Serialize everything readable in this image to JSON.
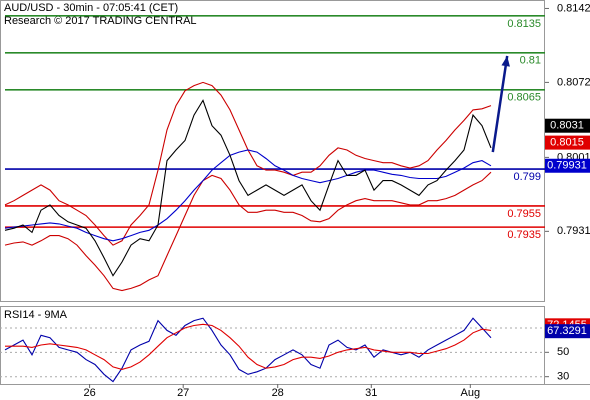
{
  "chart_data": [
    {
      "type": "line",
      "title": "AUD/USD - 30min - 07:05:41 (CET)",
      "subtitle": "Research © 2017 TRADING CENTRAL",
      "x": [
        0,
        1,
        2,
        3,
        4,
        5,
        6,
        7,
        8,
        9,
        10,
        11,
        12,
        13,
        14,
        15,
        16,
        17,
        18,
        19,
        20,
        21,
        22,
        23,
        24,
        25,
        26,
        27,
        28,
        29,
        30,
        31,
        32,
        33,
        34,
        35,
        36,
        37,
        38,
        39,
        40,
        41,
        42,
        43,
        44,
        45,
        46,
        47,
        48,
        49,
        50,
        51,
        52,
        53,
        54
      ],
      "xlim": [
        0,
        60
      ],
      "ylim": [
        0.7866,
        0.815
      ],
      "yticks": [
        0.8142,
        0.8072,
        0.8001,
        0.7931
      ],
      "series": [
        {
          "color": "#cc0000",
          "values": [
            0.7956,
            0.796,
            0.7965,
            0.797,
            0.7975,
            0.797,
            0.796,
            0.7956,
            0.7951,
            0.7946,
            0.7937,
            0.7927,
            0.7918,
            0.7922,
            0.7937,
            0.7946,
            0.7956,
            0.7989,
            0.8027,
            0.805,
            0.8064,
            0.8069,
            0.8072,
            0.8069,
            0.806,
            0.8046,
            0.8027,
            0.8008,
            0.7993,
            0.7989,
            0.7989,
            0.7987,
            0.7984,
            0.7987,
            0.7987,
            0.7993,
            0.8003,
            0.801,
            0.8008,
            0.8003,
            0.8,
            0.7998,
            0.7996,
            0.7996,
            0.7993,
            0.7991,
            0.7993,
            0.7998,
            0.8008,
            0.8017,
            0.8027,
            0.8036,
            0.8046,
            0.8047,
            0.805
          ]
        },
        {
          "color": "#cc0000",
          "values": [
            0.7918,
            0.792,
            0.7921,
            0.7918,
            0.7922,
            0.7927,
            0.7927,
            0.7924,
            0.7918,
            0.7908,
            0.7899,
            0.7889,
            0.7877,
            0.7875,
            0.7877,
            0.788,
            0.7885,
            0.7889,
            0.7908,
            0.7927,
            0.7946,
            0.7965,
            0.7979,
            0.7984,
            0.7981,
            0.797,
            0.7956,
            0.7949,
            0.7949,
            0.7951,
            0.7951,
            0.7949,
            0.7949,
            0.7946,
            0.7941,
            0.794,
            0.7943,
            0.7951,
            0.7956,
            0.796,
            0.7962,
            0.796,
            0.796,
            0.796,
            0.7958,
            0.7956,
            0.7956,
            0.796,
            0.796,
            0.7962,
            0.7965,
            0.797,
            0.7975,
            0.7979,
            0.7987
          ]
        },
        {
          "color": "#0000cc",
          "values": [
            0.7934,
            0.7935,
            0.7936,
            0.7937,
            0.7938,
            0.7939,
            0.7938,
            0.7936,
            0.7934,
            0.793,
            0.7927,
            0.7924,
            0.7922,
            0.7924,
            0.7927,
            0.793,
            0.7932,
            0.7937,
            0.7943,
            0.7951,
            0.796,
            0.797,
            0.7979,
            0.7989,
            0.7996,
            0.8003,
            0.8006,
            0.8008,
            0.8006,
            0.8,
            0.7993,
            0.7989,
            0.7984,
            0.7981,
            0.7979,
            0.7977,
            0.7979,
            0.7981,
            0.7984,
            0.7987,
            0.7989,
            0.7989,
            0.7987,
            0.7985,
            0.7984,
            0.7982,
            0.7981,
            0.7981,
            0.7981,
            0.7983,
            0.7987,
            0.7991,
            0.7996,
            0.7998,
            0.7993
          ]
        },
        {
          "color": "#000000",
          "values": [
            0.7932,
            0.7934,
            0.7937,
            0.793,
            0.7951,
            0.7956,
            0.7946,
            0.794,
            0.7937,
            0.7934,
            0.7922,
            0.7906,
            0.7889,
            0.7902,
            0.7918,
            0.7924,
            0.7922,
            0.7937,
            0.7998,
            0.8008,
            0.8017,
            0.8041,
            0.8055,
            0.8031,
            0.8022,
            0.8003,
            0.7979,
            0.7965,
            0.797,
            0.7975,
            0.797,
            0.7965,
            0.797,
            0.7975,
            0.796,
            0.7951,
            0.7975,
            0.7998,
            0.7984,
            0.7984,
            0.7989,
            0.797,
            0.7979,
            0.7979,
            0.7975,
            0.797,
            0.7965,
            0.7975,
            0.7979,
            0.7989,
            0.7998,
            0.8008,
            0.8041,
            0.8031,
            0.801
          ]
        }
      ],
      "levels": [
        {
          "value": 0.8135,
          "color": "#2a8a2a"
        },
        {
          "value": 0.81,
          "color": "#2a8a2a"
        },
        {
          "value": 0.8065,
          "color": "#2a8a2a"
        },
        {
          "value": 0.799,
          "color": "#0000aa"
        },
        {
          "value": 0.7955,
          "color": "#e00000"
        },
        {
          "value": 0.7935,
          "color": "#e00000"
        }
      ],
      "price_tags": [
        {
          "value": 0.8031,
          "color": "#000000"
        },
        {
          "value": 0.8015,
          "color": "#e00000"
        },
        {
          "value": 0.79931,
          "color": "#0000cc"
        }
      ],
      "arrow": {
        "x": [
          54.2,
          55.8
        ],
        "values": [
          0.8006,
          0.8097
        ],
        "color": "#0a1a8c"
      }
    },
    {
      "type": "line",
      "title": "RSI14 - 9MA",
      "x": [
        0,
        1,
        2,
        3,
        4,
        5,
        6,
        7,
        8,
        9,
        10,
        11,
        12,
        13,
        14,
        15,
        16,
        17,
        18,
        19,
        20,
        21,
        22,
        23,
        24,
        25,
        26,
        27,
        28,
        29,
        30,
        31,
        32,
        33,
        34,
        35,
        36,
        37,
        38,
        39,
        40,
        41,
        42,
        43,
        44,
        45,
        46,
        47,
        48,
        49,
        50,
        51,
        52,
        53,
        54
      ],
      "xlim": [
        0,
        60
      ],
      "xticks": [
        {
          "value": 9.4,
          "label": "26"
        },
        {
          "value": 19.8,
          "label": "27"
        },
        {
          "value": 30.3,
          "label": "28"
        },
        {
          "value": 40.7,
          "label": "31"
        },
        {
          "value": 51.7,
          "label": "Aug"
        }
      ],
      "ylim": [
        24,
        88
      ],
      "yticks": [
        70,
        50,
        30
      ],
      "grid": true,
      "series": [
        {
          "color": "#0000aa",
          "values": [
            52,
            56,
            60,
            48,
            64,
            62,
            54,
            52,
            50,
            44,
            40,
            32,
            26,
            37,
            52,
            56,
            59,
            76,
            68,
            64,
            72,
            76,
            78,
            68,
            56,
            48,
            36,
            32,
            34,
            37,
            44,
            48,
            52,
            48,
            40,
            37,
            56,
            60,
            54,
            52,
            56,
            46,
            52,
            50,
            48,
            50,
            46,
            52,
            56,
            60,
            64,
            68,
            78,
            70,
            62
          ]
        },
        {
          "color": "#e00000",
          "values": [
            55,
            55,
            55,
            54,
            56,
            57,
            56,
            55,
            54,
            52,
            48,
            44,
            38,
            36,
            38,
            42,
            48,
            55,
            62,
            66,
            70,
            72,
            73,
            72,
            68,
            62,
            55,
            46,
            40,
            37,
            38,
            40,
            44,
            46,
            46,
            45,
            47,
            50,
            52,
            53,
            54,
            52,
            51,
            50,
            50,
            50,
            49,
            49,
            51,
            53,
            56,
            60,
            66,
            69,
            68
          ]
        }
      ],
      "price_tags": [
        {
          "value": 72.1455,
          "color": "#e00000"
        },
        {
          "value": 67.3291,
          "color": "#0000aa"
        }
      ]
    }
  ]
}
